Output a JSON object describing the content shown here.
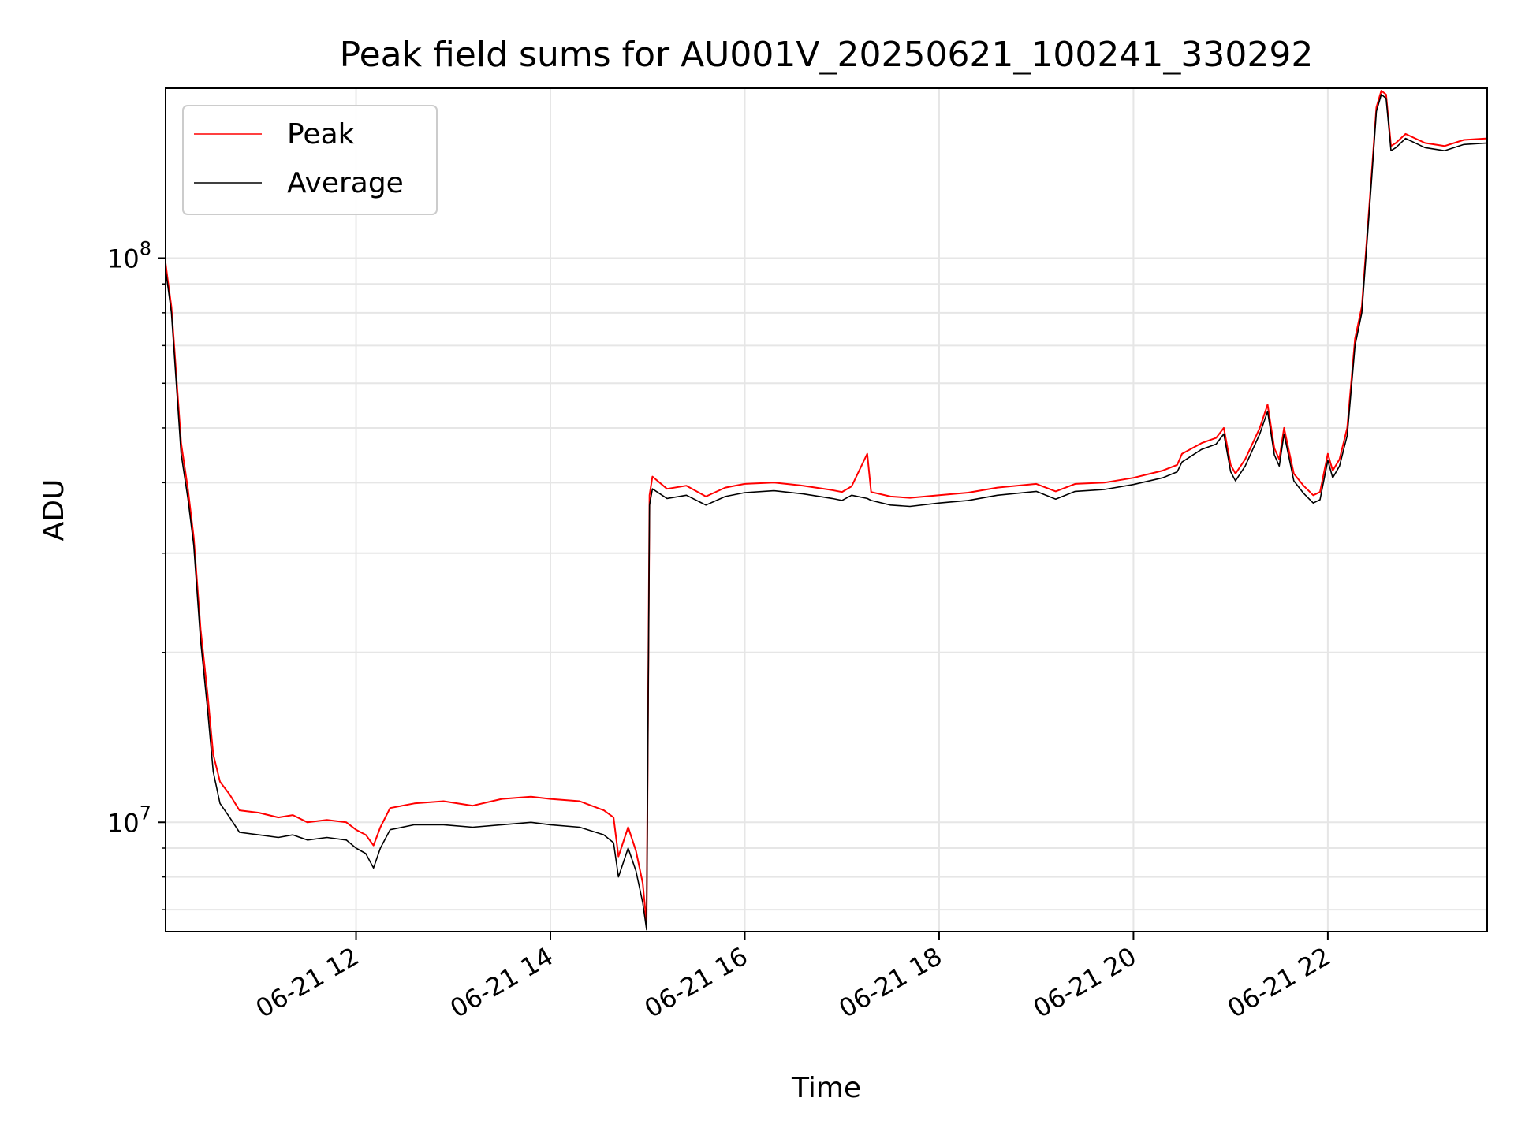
{
  "chart_data": {
    "type": "line",
    "title": "Peak field sums for AU001V_20250621_100241_330292",
    "xlabel": "Time",
    "ylabel": "ADU",
    "yscale": "log",
    "x_unit": "hour of 2025-06-21",
    "xlim": [
      10.04,
      23.64
    ],
    "ylim": [
      6400000,
      200000000
    ],
    "x_tick_values": [
      12,
      14,
      16,
      18,
      20,
      22
    ],
    "x_tick_labels": [
      "06-21 12",
      "06-21 14",
      "06-21 16",
      "06-21 18",
      "06-21 20",
      "06-21 22"
    ],
    "y_major_ticks": [
      {
        "value": 10000000,
        "base": "10",
        "exp": "7"
      },
      {
        "value": 100000000,
        "base": "10",
        "exp": "8"
      }
    ],
    "y_minor_ticks": [
      7000000,
      8000000,
      9000000,
      20000000,
      30000000,
      40000000,
      50000000,
      60000000,
      70000000,
      80000000,
      90000000
    ],
    "grid": true,
    "legend_position": "upper-left",
    "series": [
      {
        "name": "Peak",
        "color": "#ff0000",
        "points": [
          [
            10.04,
            98000000
          ],
          [
            10.06,
            92000000
          ],
          [
            10.1,
            82000000
          ],
          [
            10.15,
            62000000
          ],
          [
            10.2,
            47000000
          ],
          [
            10.27,
            39000000
          ],
          [
            10.33,
            32000000
          ],
          [
            10.4,
            22000000
          ],
          [
            10.47,
            17000000
          ],
          [
            10.53,
            13200000
          ],
          [
            10.6,
            11800000
          ],
          [
            10.7,
            11200000
          ],
          [
            10.8,
            10500000
          ],
          [
            11.0,
            10400000
          ],
          [
            11.2,
            10200000
          ],
          [
            11.35,
            10300000
          ],
          [
            11.5,
            10000000
          ],
          [
            11.7,
            10100000
          ],
          [
            11.9,
            10000000
          ],
          [
            12.0,
            9700000
          ],
          [
            12.1,
            9500000
          ],
          [
            12.18,
            9100000
          ],
          [
            12.25,
            9800000
          ],
          [
            12.35,
            10600000
          ],
          [
            12.6,
            10800000
          ],
          [
            12.9,
            10900000
          ],
          [
            13.2,
            10700000
          ],
          [
            13.5,
            11000000
          ],
          [
            13.8,
            11100000
          ],
          [
            14.0,
            11000000
          ],
          [
            14.3,
            10900000
          ],
          [
            14.55,
            10500000
          ],
          [
            14.65,
            10200000
          ],
          [
            14.7,
            8700000
          ],
          [
            14.8,
            9800000
          ],
          [
            14.88,
            8900000
          ],
          [
            14.95,
            7800000
          ],
          [
            14.99,
            6600000
          ],
          [
            15.02,
            38000000
          ],
          [
            15.05,
            41000000
          ],
          [
            15.2,
            39000000
          ],
          [
            15.4,
            39500000
          ],
          [
            15.6,
            37800000
          ],
          [
            15.8,
            39200000
          ],
          [
            16.0,
            39800000
          ],
          [
            16.3,
            40000000
          ],
          [
            16.6,
            39500000
          ],
          [
            16.9,
            38800000
          ],
          [
            17.0,
            38500000
          ],
          [
            17.1,
            39400000
          ],
          [
            17.26,
            45000000
          ],
          [
            17.3,
            38500000
          ],
          [
            17.5,
            37800000
          ],
          [
            17.7,
            37600000
          ],
          [
            18.0,
            38000000
          ],
          [
            18.3,
            38400000
          ],
          [
            18.6,
            39200000
          ],
          [
            19.0,
            39800000
          ],
          [
            19.2,
            38600000
          ],
          [
            19.4,
            39800000
          ],
          [
            19.7,
            40000000
          ],
          [
            20.0,
            40800000
          ],
          [
            20.3,
            42000000
          ],
          [
            20.45,
            43000000
          ],
          [
            20.5,
            45000000
          ],
          [
            20.7,
            47000000
          ],
          [
            20.85,
            48000000
          ],
          [
            20.93,
            50000000
          ],
          [
            21.0,
            43000000
          ],
          [
            21.05,
            41500000
          ],
          [
            21.15,
            44000000
          ],
          [
            21.3,
            50000000
          ],
          [
            21.38,
            55000000
          ],
          [
            21.45,
            46000000
          ],
          [
            21.5,
            44000000
          ],
          [
            21.55,
            50000000
          ],
          [
            21.65,
            41500000
          ],
          [
            21.75,
            39500000
          ],
          [
            21.85,
            38000000
          ],
          [
            21.92,
            38500000
          ],
          [
            22.0,
            45000000
          ],
          [
            22.05,
            42000000
          ],
          [
            22.12,
            44000000
          ],
          [
            22.2,
            50000000
          ],
          [
            22.28,
            72000000
          ],
          [
            22.35,
            82000000
          ],
          [
            22.45,
            140000000
          ],
          [
            22.5,
            185000000
          ],
          [
            22.55,
            198000000
          ],
          [
            22.6,
            195000000
          ],
          [
            22.65,
            158000000
          ],
          [
            22.7,
            160000000
          ],
          [
            22.8,
            166000000
          ],
          [
            23.0,
            160000000
          ],
          [
            23.2,
            158000000
          ],
          [
            23.4,
            162000000
          ],
          [
            23.64,
            163000000
          ]
        ]
      },
      {
        "name": "Average",
        "color": "#000000",
        "points": [
          [
            10.04,
            95000000
          ],
          [
            10.06,
            90000000
          ],
          [
            10.1,
            80000000
          ],
          [
            10.15,
            60000000
          ],
          [
            10.2,
            45000000
          ],
          [
            10.27,
            37500000
          ],
          [
            10.33,
            31000000
          ],
          [
            10.4,
            21000000
          ],
          [
            10.47,
            16000000
          ],
          [
            10.53,
            12300000
          ],
          [
            10.6,
            10800000
          ],
          [
            10.7,
            10200000
          ],
          [
            10.8,
            9600000
          ],
          [
            11.0,
            9500000
          ],
          [
            11.2,
            9400000
          ],
          [
            11.35,
            9500000
          ],
          [
            11.5,
            9300000
          ],
          [
            11.7,
            9400000
          ],
          [
            11.9,
            9300000
          ],
          [
            12.0,
            9000000
          ],
          [
            12.1,
            8800000
          ],
          [
            12.18,
            8300000
          ],
          [
            12.25,
            9000000
          ],
          [
            12.35,
            9700000
          ],
          [
            12.6,
            9900000
          ],
          [
            12.9,
            9900000
          ],
          [
            13.2,
            9800000
          ],
          [
            13.5,
            9900000
          ],
          [
            13.8,
            10000000
          ],
          [
            14.0,
            9900000
          ],
          [
            14.3,
            9800000
          ],
          [
            14.55,
            9500000
          ],
          [
            14.65,
            9200000
          ],
          [
            14.7,
            8000000
          ],
          [
            14.8,
            9000000
          ],
          [
            14.88,
            8200000
          ],
          [
            14.95,
            7200000
          ],
          [
            14.99,
            6450000
          ],
          [
            15.02,
            36500000
          ],
          [
            15.05,
            39000000
          ],
          [
            15.2,
            37500000
          ],
          [
            15.4,
            38000000
          ],
          [
            15.6,
            36500000
          ],
          [
            15.8,
            37800000
          ],
          [
            16.0,
            38400000
          ],
          [
            16.3,
            38700000
          ],
          [
            16.6,
            38200000
          ],
          [
            16.9,
            37500000
          ],
          [
            17.0,
            37200000
          ],
          [
            17.1,
            38000000
          ],
          [
            17.26,
            37500000
          ],
          [
            17.3,
            37200000
          ],
          [
            17.5,
            36500000
          ],
          [
            17.7,
            36300000
          ],
          [
            18.0,
            36800000
          ],
          [
            18.3,
            37200000
          ],
          [
            18.6,
            38000000
          ],
          [
            19.0,
            38600000
          ],
          [
            19.2,
            37400000
          ],
          [
            19.4,
            38600000
          ],
          [
            19.7,
            38900000
          ],
          [
            20.0,
            39700000
          ],
          [
            20.3,
            40800000
          ],
          [
            20.45,
            41800000
          ],
          [
            20.5,
            43500000
          ],
          [
            20.7,
            45800000
          ],
          [
            20.85,
            46800000
          ],
          [
            20.93,
            48800000
          ],
          [
            21.0,
            41800000
          ],
          [
            21.05,
            40300000
          ],
          [
            21.15,
            42800000
          ],
          [
            21.3,
            48800000
          ],
          [
            21.38,
            53500000
          ],
          [
            21.45,
            44800000
          ],
          [
            21.5,
            42800000
          ],
          [
            21.55,
            48800000
          ],
          [
            21.65,
            40300000
          ],
          [
            21.75,
            38300000
          ],
          [
            21.85,
            36800000
          ],
          [
            21.92,
            37300000
          ],
          [
            22.0,
            43800000
          ],
          [
            22.05,
            40800000
          ],
          [
            22.12,
            42800000
          ],
          [
            22.2,
            48500000
          ],
          [
            22.28,
            70000000
          ],
          [
            22.35,
            80000000
          ],
          [
            22.45,
            137000000
          ],
          [
            22.5,
            182000000
          ],
          [
            22.55,
            195000000
          ],
          [
            22.6,
            192000000
          ],
          [
            22.65,
            155000000
          ],
          [
            22.7,
            157000000
          ],
          [
            22.8,
            163000000
          ],
          [
            23.0,
            157000000
          ],
          [
            23.2,
            155000000
          ],
          [
            23.4,
            159000000
          ],
          [
            23.64,
            160000000
          ]
        ]
      }
    ]
  }
}
